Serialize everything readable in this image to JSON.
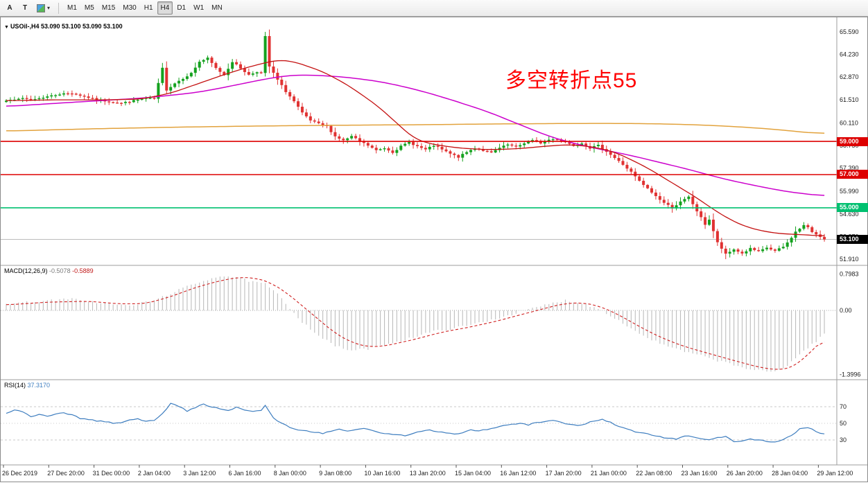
{
  "toolbar": {
    "tool_buttons": [
      {
        "label": "A"
      },
      {
        "label": "T"
      }
    ],
    "timeframes": [
      "M1",
      "M5",
      "M15",
      "M30",
      "H1",
      "H4",
      "D1",
      "W1",
      "MN"
    ],
    "active_timeframe": "H4"
  },
  "chart": {
    "header": {
      "symbol_period": "USOil-,H4",
      "ohlc": "53.090 53.100 53.090 53.100"
    },
    "annotation": {
      "text": "多空转折点55",
      "color": "#ff0000"
    },
    "hlines": [
      {
        "price": 59.0,
        "label": "59.000",
        "color": "#dd0000"
      },
      {
        "price": 57.0,
        "label": "57.000",
        "color": "#dd0000"
      },
      {
        "price": 55.0,
        "label": "55.000",
        "color": "#00c070"
      }
    ],
    "current_price": {
      "value": 53.1,
      "label": "53.100",
      "badge_color": "#000000"
    },
    "price_axis_ticks": [
      65.59,
      64.23,
      62.87,
      61.51,
      60.11,
      58.75,
      57.39,
      55.99,
      54.63,
      53.27,
      51.91
    ],
    "time_axis": [
      "26 Dec 2019",
      "27 Dec 20:00",
      "31 Dec 00:00",
      "2 Jan 04:00",
      "3 Jan 12:00",
      "6 Jan 16:00",
      "8 Jan 00:00",
      "9 Jan 08:00",
      "10 Jan 16:00",
      "13 Jan 20:00",
      "15 Jan 04:00",
      "16 Jan 12:00",
      "17 Jan 20:00",
      "21 Jan 00:00",
      "22 Jan 08:00",
      "23 Jan 16:00",
      "26 Jan 20:00",
      "28 Jan 04:00",
      "29 Jan 12:00"
    ]
  },
  "indicators": {
    "macd": {
      "name": "MACD(12,26,9)",
      "value_hist": "-0.5078",
      "value_signal": "-0.5889",
      "scale": [
        "0.7983",
        "0.00",
        "-1.3996"
      ]
    },
    "rsi": {
      "name": "RSI(14)",
      "value": "37.3170",
      "levels": [
        "70",
        "50",
        "30"
      ]
    }
  },
  "chart_data": {
    "type": "candlestick",
    "symbol": "USOil-",
    "timeframe": "H4",
    "bars": 200,
    "price_range": [
      51.91,
      65.59
    ],
    "last_bar_ohlc": [
      53.09,
      53.1,
      53.09,
      53.1
    ],
    "close_anchors": [
      [
        0,
        61.45
      ],
      [
        3,
        61.6
      ],
      [
        6,
        61.5
      ],
      [
        10,
        61.7
      ],
      [
        13,
        61.85
      ],
      [
        16,
        61.9
      ],
      [
        19,
        61.7
      ],
      [
        22,
        61.5
      ],
      [
        25,
        61.4
      ],
      [
        28,
        61.3
      ],
      [
        31,
        61.45
      ],
      [
        34,
        61.6
      ],
      [
        36,
        61.55
      ],
      [
        38,
        63.4
      ],
      [
        39,
        62.1
      ],
      [
        41,
        62.5
      ],
      [
        43,
        62.8
      ],
      [
        45,
        63.1
      ],
      [
        47,
        63.8
      ],
      [
        49,
        64.0
      ],
      [
        51,
        63.4
      ],
      [
        53,
        63.0
      ],
      [
        55,
        63.8
      ],
      [
        57,
        63.4
      ],
      [
        59,
        63.0
      ],
      [
        61,
        63.2
      ],
      [
        62,
        63.1
      ],
      [
        63,
        65.3
      ],
      [
        64,
        63.5
      ],
      [
        66,
        62.7
      ],
      [
        68,
        62.0
      ],
      [
        70,
        61.4
      ],
      [
        72,
        60.7
      ],
      [
        74,
        60.25
      ],
      [
        76,
        60.05
      ],
      [
        78,
        59.9
      ],
      [
        80,
        59.3
      ],
      [
        82,
        59.05
      ],
      [
        84,
        59.3
      ],
      [
        86,
        59.0
      ],
      [
        88,
        58.75
      ],
      [
        90,
        58.45
      ],
      [
        92,
        58.6
      ],
      [
        94,
        58.35
      ],
      [
        96,
        58.7
      ],
      [
        98,
        58.95
      ],
      [
        100,
        58.7
      ],
      [
        102,
        58.5
      ],
      [
        104,
        58.75
      ],
      [
        106,
        58.5
      ],
      [
        108,
        58.25
      ],
      [
        110,
        58.05
      ],
      [
        112,
        58.35
      ],
      [
        114,
        58.6
      ],
      [
        116,
        58.45
      ],
      [
        118,
        58.3
      ],
      [
        120,
        58.6
      ],
      [
        122,
        58.8
      ],
      [
        124,
        58.65
      ],
      [
        126,
        58.9
      ],
      [
        128,
        59.05
      ],
      [
        130,
        58.9
      ],
      [
        132,
        59.1
      ],
      [
        134,
        59.15
      ],
      [
        136,
        58.95
      ],
      [
        138,
        58.75
      ],
      [
        140,
        58.9
      ],
      [
        142,
        58.6
      ],
      [
        144,
        58.75
      ],
      [
        146,
        58.4
      ],
      [
        148,
        58.0
      ],
      [
        150,
        57.6
      ],
      [
        152,
        57.15
      ],
      [
        154,
        56.6
      ],
      [
        156,
        56.15
      ],
      [
        158,
        55.7
      ],
      [
        160,
        55.3
      ],
      [
        162,
        55.0
      ],
      [
        164,
        55.35
      ],
      [
        166,
        55.65
      ],
      [
        168,
        54.8
      ],
      [
        170,
        54.0
      ],
      [
        171,
        54.3
      ],
      [
        173,
        52.9
      ],
      [
        175,
        52.2
      ],
      [
        177,
        52.5
      ],
      [
        179,
        52.25
      ],
      [
        181,
        52.55
      ],
      [
        183,
        52.35
      ],
      [
        185,
        52.6
      ],
      [
        187,
        52.4
      ],
      [
        189,
        52.65
      ],
      [
        190,
        52.9
      ],
      [
        192,
        53.55
      ],
      [
        194,
        53.95
      ],
      [
        195,
        53.8
      ],
      [
        196,
        53.55
      ],
      [
        197,
        53.4
      ],
      [
        198,
        53.25
      ],
      [
        199,
        53.1
      ]
    ],
    "spike_high": {
      "index": 63,
      "price": 65.59
    },
    "spike_low": {
      "index": 175,
      "price": 51.91
    },
    "ma_fast_anchors": [
      [
        0,
        61.45
      ],
      [
        12,
        61.5
      ],
      [
        25,
        61.5
      ],
      [
        33,
        61.55
      ],
      [
        40,
        61.9
      ],
      [
        47,
        62.5
      ],
      [
        54,
        63.1
      ],
      [
        60,
        63.55
      ],
      [
        66,
        63.9
      ],
      [
        70,
        63.8
      ],
      [
        77,
        63.2
      ],
      [
        83,
        62.4
      ],
      [
        90,
        61.2
      ],
      [
        95,
        60.1
      ],
      [
        99,
        59.2
      ],
      [
        103,
        58.85
      ],
      [
        110,
        58.6
      ],
      [
        117,
        58.5
      ],
      [
        124,
        58.55
      ],
      [
        131,
        58.7
      ],
      [
        136,
        58.8
      ],
      [
        140,
        58.75
      ],
      [
        144,
        58.6
      ],
      [
        148,
        58.35
      ],
      [
        152,
        57.9
      ],
      [
        156,
        57.4
      ],
      [
        160,
        56.8
      ],
      [
        164,
        56.2
      ],
      [
        168,
        55.6
      ],
      [
        172,
        54.9
      ],
      [
        176,
        54.3
      ],
      [
        180,
        53.85
      ],
      [
        184,
        53.6
      ],
      [
        188,
        53.45
      ],
      [
        192,
        53.4
      ],
      [
        196,
        53.35
      ],
      [
        199,
        53.3
      ]
    ],
    "ma_mid_anchors": [
      [
        0,
        61.1
      ],
      [
        16,
        61.35
      ],
      [
        33,
        61.6
      ],
      [
        45,
        61.9
      ],
      [
        50,
        62.1
      ],
      [
        56,
        62.4
      ],
      [
        63,
        62.75
      ],
      [
        68,
        62.95
      ],
      [
        72,
        63.0
      ],
      [
        78,
        62.95
      ],
      [
        85,
        62.8
      ],
      [
        92,
        62.55
      ],
      [
        100,
        62.1
      ],
      [
        107,
        61.6
      ],
      [
        112,
        61.2
      ],
      [
        117,
        60.8
      ],
      [
        122,
        60.3
      ],
      [
        127,
        59.8
      ],
      [
        132,
        59.3
      ],
      [
        137,
        58.95
      ],
      [
        142,
        58.65
      ],
      [
        147,
        58.4
      ],
      [
        152,
        58.15
      ],
      [
        157,
        57.85
      ],
      [
        162,
        57.55
      ],
      [
        167,
        57.25
      ],
      [
        172,
        56.9
      ],
      [
        177,
        56.6
      ],
      [
        182,
        56.35
      ],
      [
        187,
        56.1
      ],
      [
        192,
        55.9
      ],
      [
        196,
        55.8
      ],
      [
        199,
        55.7
      ]
    ],
    "ma_slow_anchors": [
      [
        0,
        59.62
      ],
      [
        20,
        59.75
      ],
      [
        40,
        59.85
      ],
      [
        60,
        59.92
      ],
      [
        80,
        59.97
      ],
      [
        100,
        60.0
      ],
      [
        120,
        60.05
      ],
      [
        140,
        60.08
      ],
      [
        150,
        60.08
      ],
      [
        160,
        60.05
      ],
      [
        170,
        59.98
      ],
      [
        180,
        59.85
      ],
      [
        188,
        59.7
      ],
      [
        194,
        59.55
      ],
      [
        199,
        59.45
      ]
    ],
    "macd_range": [
      -1.3996,
      0.7983
    ],
    "macd_anchors": [
      [
        0,
        0.15
      ],
      [
        8,
        0.2
      ],
      [
        16,
        0.25
      ],
      [
        24,
        0.15
      ],
      [
        30,
        0.1
      ],
      [
        36,
        0.22
      ],
      [
        42,
        0.45
      ],
      [
        48,
        0.65
      ],
      [
        52,
        0.76
      ],
      [
        56,
        0.72
      ],
      [
        60,
        0.62
      ],
      [
        63,
        0.58
      ],
      [
        66,
        0.35
      ],
      [
        69,
        0.05
      ],
      [
        72,
        -0.25
      ],
      [
        76,
        -0.55
      ],
      [
        80,
        -0.78
      ],
      [
        84,
        -0.88
      ],
      [
        88,
        -0.84
      ],
      [
        92,
        -0.75
      ],
      [
        96,
        -0.66
      ],
      [
        100,
        -0.56
      ],
      [
        104,
        -0.46
      ],
      [
        108,
        -0.4
      ],
      [
        112,
        -0.34
      ],
      [
        116,
        -0.25
      ],
      [
        120,
        -0.16
      ],
      [
        124,
        -0.06
      ],
      [
        128,
        0.04
      ],
      [
        132,
        0.14
      ],
      [
        136,
        0.22
      ],
      [
        140,
        0.16
      ],
      [
        144,
        0.04
      ],
      [
        148,
        -0.16
      ],
      [
        152,
        -0.4
      ],
      [
        156,
        -0.6
      ],
      [
        160,
        -0.76
      ],
      [
        164,
        -0.88
      ],
      [
        168,
        -0.97
      ],
      [
        172,
        -1.07
      ],
      [
        176,
        -1.17
      ],
      [
        180,
        -1.27
      ],
      [
        184,
        -1.33
      ],
      [
        186,
        -1.35
      ],
      [
        188,
        -1.3
      ],
      [
        190,
        -1.2
      ],
      [
        192,
        -1.04
      ],
      [
        194,
        -0.89
      ],
      [
        196,
        -0.74
      ],
      [
        198,
        -0.6
      ],
      [
        199,
        -0.508
      ]
    ],
    "macd_signal_anchors": [
      [
        0,
        0.12
      ],
      [
        10,
        0.18
      ],
      [
        20,
        0.2
      ],
      [
        28,
        0.14
      ],
      [
        34,
        0.15
      ],
      [
        40,
        0.3
      ],
      [
        46,
        0.5
      ],
      [
        52,
        0.65
      ],
      [
        57,
        0.73
      ],
      [
        61,
        0.7
      ],
      [
        64,
        0.62
      ],
      [
        68,
        0.4
      ],
      [
        72,
        0.1
      ],
      [
        76,
        -0.2
      ],
      [
        80,
        -0.5
      ],
      [
        84,
        -0.7
      ],
      [
        88,
        -0.8
      ],
      [
        92,
        -0.78
      ],
      [
        96,
        -0.7
      ],
      [
        100,
        -0.62
      ],
      [
        104,
        -0.52
      ],
      [
        108,
        -0.44
      ],
      [
        112,
        -0.38
      ],
      [
        116,
        -0.3
      ],
      [
        120,
        -0.22
      ],
      [
        124,
        -0.12
      ],
      [
        128,
        -0.03
      ],
      [
        132,
        0.07
      ],
      [
        136,
        0.15
      ],
      [
        140,
        0.17
      ],
      [
        144,
        0.1
      ],
      [
        148,
        -0.05
      ],
      [
        152,
        -0.25
      ],
      [
        156,
        -0.45
      ],
      [
        160,
        -0.62
      ],
      [
        164,
        -0.76
      ],
      [
        168,
        -0.87
      ],
      [
        172,
        -0.97
      ],
      [
        176,
        -1.07
      ],
      [
        180,
        -1.17
      ],
      [
        184,
        -1.26
      ],
      [
        188,
        -1.3
      ],
      [
        190,
        -1.28
      ],
      [
        192,
        -1.2
      ],
      [
        194,
        -1.05
      ],
      [
        196,
        -0.88
      ],
      [
        198,
        -0.7
      ],
      [
        199,
        -0.589
      ]
    ],
    "rsi_range": [
      0,
      100
    ],
    "rsi_anchors": [
      [
        0,
        62
      ],
      [
        2,
        66
      ],
      [
        4,
        64
      ],
      [
        6,
        58
      ],
      [
        8,
        61
      ],
      [
        10,
        59
      ],
      [
        12,
        61
      ],
      [
        14,
        63
      ],
      [
        16,
        60
      ],
      [
        18,
        56
      ],
      [
        20,
        55
      ],
      [
        22,
        53
      ],
      [
        24,
        52
      ],
      [
        26,
        50
      ],
      [
        28,
        51
      ],
      [
        30,
        54
      ],
      [
        32,
        55
      ],
      [
        34,
        53
      ],
      [
        36,
        54
      ],
      [
        38,
        62
      ],
      [
        40,
        74
      ],
      [
        42,
        70
      ],
      [
        44,
        65
      ],
      [
        46,
        69
      ],
      [
        48,
        73
      ],
      [
        50,
        70
      ],
      [
        52,
        67
      ],
      [
        54,
        65
      ],
      [
        56,
        69
      ],
      [
        58,
        66
      ],
      [
        60,
        64
      ],
      [
        62,
        66
      ],
      [
        63,
        71
      ],
      [
        65,
        56
      ],
      [
        67,
        50
      ],
      [
        69,
        45
      ],
      [
        71,
        42
      ],
      [
        73,
        41
      ],
      [
        75,
        39
      ],
      [
        77,
        38
      ],
      [
        79,
        41
      ],
      [
        81,
        43
      ],
      [
        83,
        40
      ],
      [
        85,
        42
      ],
      [
        87,
        44
      ],
      [
        89,
        41
      ],
      [
        91,
        39
      ],
      [
        93,
        37
      ],
      [
        95,
        36
      ],
      [
        97,
        35
      ],
      [
        99,
        38
      ],
      [
        101,
        41
      ],
      [
        103,
        42
      ],
      [
        105,
        40
      ],
      [
        107,
        39
      ],
      [
        109,
        37
      ],
      [
        111,
        39
      ],
      [
        113,
        42
      ],
      [
        115,
        41
      ],
      [
        117,
        43
      ],
      [
        119,
        45
      ],
      [
        121,
        47
      ],
      [
        123,
        49
      ],
      [
        125,
        50
      ],
      [
        127,
        48
      ],
      [
        129,
        51
      ],
      [
        131,
        52
      ],
      [
        133,
        53
      ],
      [
        135,
        51
      ],
      [
        137,
        49
      ],
      [
        139,
        47
      ],
      [
        141,
        50
      ],
      [
        143,
        53
      ],
      [
        145,
        55
      ],
      [
        147,
        51
      ],
      [
        149,
        46
      ],
      [
        151,
        43
      ],
      [
        153,
        40
      ],
      [
        155,
        38
      ],
      [
        157,
        36
      ],
      [
        159,
        34
      ],
      [
        161,
        32
      ],
      [
        163,
        31
      ],
      [
        165,
        35
      ],
      [
        167,
        34
      ],
      [
        169,
        32
      ],
      [
        171,
        30
      ],
      [
        173,
        33
      ],
      [
        175,
        34
      ],
      [
        177,
        28
      ],
      [
        179,
        29
      ],
      [
        181,
        31
      ],
      [
        183,
        30
      ],
      [
        185,
        28
      ],
      [
        187,
        27
      ],
      [
        189,
        30
      ],
      [
        191,
        36
      ],
      [
        193,
        43
      ],
      [
        195,
        45
      ],
      [
        197,
        40
      ],
      [
        198,
        38
      ],
      [
        199,
        37.3
      ]
    ],
    "colors": {
      "candle_up": "#14a11e",
      "candle_down": "#e03232",
      "ma_fast": "#c41111",
      "ma_mid": "#cc00cc",
      "ma_slow": "#e2a23c",
      "macd_hist": "#bdbdbd",
      "macd_signal": "#cf1f1f",
      "rsi_line": "#3d7dbf",
      "current_price_line": "#bbbbbb"
    }
  }
}
